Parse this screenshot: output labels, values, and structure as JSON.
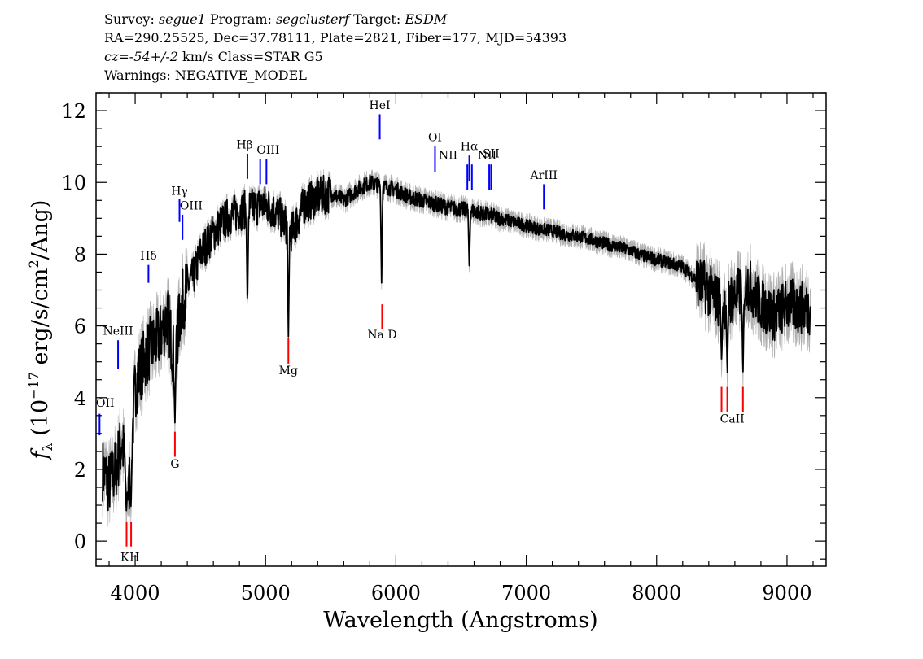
{
  "header": {
    "survey_label": "Survey: ",
    "survey": "segue1",
    "program_label": " Program: ",
    "program": "segclusterf",
    "target_label": " Target: ",
    "target": "ESDM",
    "line2": "RA=290.25525, Dec=37.78111, Plate=2821, Fiber=177, MJD=54393",
    "cz_prefix": "cz=",
    "cz_value": "-54+/-2",
    "cz_suffix": " km/s  Class=STAR  G5",
    "line4": "Warnings: NEGATIVE_MODEL"
  },
  "chart_data": {
    "type": "line",
    "xlabel": "Wavelength (Angstroms)",
    "ylabel": "f_λ (10^-17 erg/s/cm^2/Ang)",
    "xlim": [
      3700,
      9300
    ],
    "ylim": [
      -0.7,
      12.5
    ],
    "xticks": [
      4000,
      5000,
      6000,
      7000,
      8000,
      9000
    ],
    "yticks": [
      0,
      2,
      4,
      6,
      8,
      10,
      12
    ],
    "grid": false,
    "colors": {
      "flux": "#000000",
      "error_band": "#b0b0b0",
      "emission": "#0000ff",
      "absorption": "#ff0000"
    },
    "series": [
      {
        "x": [
          3750,
          3800,
          3850,
          3900,
          3950,
          4000,
          4050,
          4100,
          4150,
          4200,
          4250,
          4300,
          4350,
          4400,
          4450,
          4500,
          4600,
          4700,
          4800,
          4900,
          5000,
          5100,
          5200,
          5300,
          5400,
          5500,
          5600,
          5700,
          5800,
          5900,
          6000,
          6100,
          6200,
          6300,
          6400,
          6500,
          6600,
          6700,
          6800,
          6900,
          7000,
          7100,
          7200,
          7300,
          7400,
          7500,
          7600,
          7700,
          7800,
          7900,
          8000,
          8100,
          8200,
          8300,
          8400,
          8500,
          8600,
          8700,
          8800,
          8900,
          9000,
          9100,
          9180
        ],
        "y": [
          2.0,
          1.6,
          2.0,
          2.8,
          1.3,
          4.3,
          4.9,
          5.3,
          5.5,
          5.8,
          6.3,
          5.0,
          6.5,
          7.1,
          7.4,
          8.0,
          8.6,
          9.0,
          9.2,
          9.3,
          9.4,
          9.1,
          8.6,
          9.4,
          9.6,
          9.7,
          9.5,
          9.8,
          10.0,
          9.9,
          9.8,
          9.6,
          9.5,
          9.4,
          9.3,
          9.25,
          9.2,
          9.1,
          9.0,
          8.9,
          8.8,
          8.7,
          8.65,
          8.55,
          8.5,
          8.4,
          8.3,
          8.2,
          8.1,
          7.95,
          7.85,
          7.75,
          7.65,
          7.3,
          7.0,
          6.6,
          6.8,
          7.2,
          6.6,
          6.3,
          6.6,
          6.5,
          6.5
        ]
      }
    ],
    "absorption_dips": [
      {
        "x": 3933,
        "y": 0.8
      },
      {
        "x": 3968,
        "y": 0.9
      },
      {
        "x": 4305,
        "y": 3.3
      },
      {
        "x": 4861,
        "y": 6.5
      },
      {
        "x": 5175,
        "y": 5.7
      },
      {
        "x": 5890,
        "y": 7.2
      },
      {
        "x": 6563,
        "y": 7.6
      },
      {
        "x": 8498,
        "y": 5.0
      },
      {
        "x": 8542,
        "y": 4.6
      },
      {
        "x": 8662,
        "y": 4.6
      }
    ],
    "line_markers": [
      {
        "label": "OII",
        "wl": 3727,
        "y0": 2.95,
        "y1": 3.55,
        "type": "emission",
        "label_y": 3.75
      },
      {
        "label": "NeIII",
        "wl": 3869,
        "y0": 4.8,
        "y1": 5.6,
        "type": "emission",
        "label_y": 5.75
      },
      {
        "label": "Hδ",
        "wl": 4102,
        "y0": 7.2,
        "y1": 7.7,
        "type": "emission",
        "label_y": 7.85
      },
      {
        "label": "Hγ",
        "wl": 4340,
        "y0": 8.9,
        "y1": 9.55,
        "type": "emission",
        "label_y": 9.65
      },
      {
        "label": "OIII",
        "wl": 4363,
        "y0": 8.4,
        "y1": 9.1,
        "type": "emission",
        "label_y": 9.25
      },
      {
        "label": "Hβ",
        "wl": 4861,
        "y0": 10.1,
        "y1": 10.8,
        "type": "emission",
        "label_y": 10.95
      },
      {
        "label": "OIII",
        "wl": 4959,
        "y0": 9.95,
        "y1": 10.65,
        "type": "emission",
        "label_y": 10.8
      },
      {
        "label": "OIII",
        "wl": 5007,
        "y0": 9.95,
        "y1": 10.65,
        "type": "emission",
        "label_y": null
      },
      {
        "label": "HeI",
        "wl": 5876,
        "y0": 11.2,
        "y1": 11.9,
        "type": "emission",
        "label_y": 12.05
      },
      {
        "label": "OI",
        "wl": 6300,
        "y0": 10.3,
        "y1": 11.0,
        "type": "emission",
        "label_y": 11.15
      },
      {
        "label": "NII",
        "wl": 6548,
        "y0": 9.8,
        "y1": 10.5,
        "type": "emission",
        "label_y": 10.65
      },
      {
        "label": "Hα",
        "wl": 6563,
        "y0": 10.05,
        "y1": 10.75,
        "type": "emission",
        "label_y": 10.9
      },
      {
        "label": "NII",
        "wl": 6583,
        "y0": 9.8,
        "y1": 10.5,
        "type": "emission",
        "label_y": 10.65
      },
      {
        "label": "SII",
        "wl": 6716,
        "y0": 9.8,
        "y1": 10.5,
        "type": "emission",
        "label_y": 10.65
      },
      {
        "label": "SII",
        "wl": 6731,
        "y0": 9.8,
        "y1": 10.5,
        "type": "emission",
        "label_y": null
      },
      {
        "label": "ArIII",
        "wl": 7135,
        "y0": 9.25,
        "y1": 9.95,
        "type": "emission",
        "label_y": 10.1
      },
      {
        "label": "K",
        "wl": 3934,
        "y0": -0.15,
        "y1": 0.55,
        "type": "absorption",
        "label_y": -0.55
      },
      {
        "label": "H",
        "wl": 3969,
        "y0": -0.15,
        "y1": 0.55,
        "type": "absorption",
        "label_y": -0.55
      },
      {
        "label": "G",
        "wl": 4305,
        "y0": 2.35,
        "y1": 3.05,
        "type": "absorption",
        "label_y": 2.05
      },
      {
        "label": "Mg",
        "wl": 5175,
        "y0": 4.95,
        "y1": 5.65,
        "type": "absorption",
        "label_y": 4.65
      },
      {
        "label": "Na D",
        "wl": 5894,
        "y0": 5.9,
        "y1": 6.6,
        "type": "absorption",
        "label_y": 5.65
      },
      {
        "label": "CaII",
        "wl": 8498,
        "y0": 3.6,
        "y1": 4.3,
        "type": "absorption",
        "label_y": 3.3
      },
      {
        "label": "CaII",
        "wl": 8542,
        "y0": 3.6,
        "y1": 4.3,
        "type": "absorption",
        "label_y": null
      },
      {
        "label": "CaII",
        "wl": 8662,
        "y0": 3.6,
        "y1": 4.3,
        "type": "absorption",
        "label_y": null
      }
    ]
  }
}
